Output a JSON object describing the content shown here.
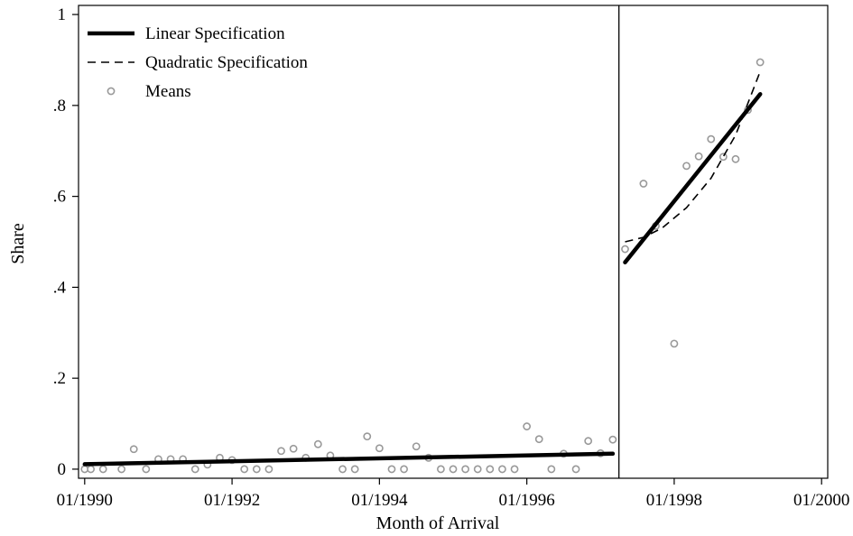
{
  "chart_data": {
    "type": "scatter",
    "title": "",
    "xlabel": "Month of Arrival",
    "ylabel": "Share",
    "x_unit": "month (YYYY-MM)",
    "xlim": [
      "1989-12",
      "2000-02"
    ],
    "ylim": [
      -0.02,
      1.02
    ],
    "x_ticks": [
      {
        "value": "1990-01",
        "label": "01/1990"
      },
      {
        "value": "1992-01",
        "label": "01/1992"
      },
      {
        "value": "1994-01",
        "label": "01/1994"
      },
      {
        "value": "1996-01",
        "label": "01/1996"
      },
      {
        "value": "1998-01",
        "label": "01/1998"
      },
      {
        "value": "2000-01",
        "label": "01/2000"
      }
    ],
    "y_ticks": [
      {
        "value": 0,
        "label": "0"
      },
      {
        "value": 0.2,
        "label": ".2"
      },
      {
        "value": 0.4,
        "label": ".4"
      },
      {
        "value": 0.6,
        "label": ".6"
      },
      {
        "value": 0.8,
        "label": ".8"
      },
      {
        "value": 1,
        "label": "1"
      }
    ],
    "grid": false,
    "legend_position": "top-left",
    "cutoff_line_x": "1997-04",
    "legend": [
      {
        "label": "Linear Specification",
        "style": "thick-solid"
      },
      {
        "label": "Quadratic Specification",
        "style": "dashed"
      },
      {
        "label": "Means",
        "style": "hollow-circle"
      }
    ],
    "series": [
      {
        "name": "Means",
        "kind": "points",
        "color": "#999999",
        "points": [
          [
            "1990-01",
            0.0
          ],
          [
            "1990-02",
            0.0
          ],
          [
            "1990-04",
            0.0
          ],
          [
            "1990-07",
            0.0
          ],
          [
            "1990-09",
            0.044
          ],
          [
            "1990-11",
            0.0
          ],
          [
            "1991-01",
            0.022
          ],
          [
            "1991-03",
            0.022
          ],
          [
            "1991-05",
            0.022
          ],
          [
            "1991-07",
            0.0
          ],
          [
            "1991-09",
            0.01
          ],
          [
            "1991-11",
            0.025
          ],
          [
            "1992-01",
            0.02
          ],
          [
            "1992-03",
            0.0
          ],
          [
            "1992-05",
            0.0
          ],
          [
            "1992-07",
            0.0
          ],
          [
            "1992-09",
            0.04
          ],
          [
            "1992-11",
            0.045
          ],
          [
            "1993-01",
            0.025
          ],
          [
            "1993-03",
            0.055
          ],
          [
            "1993-05",
            0.03
          ],
          [
            "1993-07",
            0.0
          ],
          [
            "1993-09",
            0.0
          ],
          [
            "1993-11",
            0.072
          ],
          [
            "1994-01",
            0.046
          ],
          [
            "1994-03",
            0.0
          ],
          [
            "1994-05",
            0.0
          ],
          [
            "1994-07",
            0.05
          ],
          [
            "1994-09",
            0.025
          ],
          [
            "1994-11",
            0.0
          ],
          [
            "1995-01",
            0.0
          ],
          [
            "1995-03",
            0.0
          ],
          [
            "1995-05",
            0.0
          ],
          [
            "1995-07",
            0.0
          ],
          [
            "1995-09",
            0.0
          ],
          [
            "1995-11",
            0.0
          ],
          [
            "1996-01",
            0.094
          ],
          [
            "1996-03",
            0.066
          ],
          [
            "1996-05",
            0.0
          ],
          [
            "1996-07",
            0.034
          ],
          [
            "1996-09",
            0.0
          ],
          [
            "1996-11",
            0.062
          ],
          [
            "1997-01",
            0.035
          ],
          [
            "1997-03",
            0.065
          ],
          [
            "1997-05",
            0.484
          ],
          [
            "1997-08",
            0.628
          ],
          [
            "1997-10",
            0.535
          ],
          [
            "1998-01",
            0.276
          ],
          [
            "1998-03",
            0.667
          ],
          [
            "1998-05",
            0.688
          ],
          [
            "1998-07",
            0.726
          ],
          [
            "1998-09",
            0.687
          ],
          [
            "1998-11",
            0.682
          ],
          [
            "1999-01",
            0.79
          ],
          [
            "1999-03",
            0.895
          ]
        ]
      },
      {
        "name": "Linear Specification",
        "kind": "line",
        "style": "thick-solid",
        "color": "#000000",
        "segments": [
          [
            [
              "1990-01",
              0.011
            ],
            [
              "1997-03",
              0.034
            ]
          ],
          [
            [
              "1997-05",
              0.455
            ],
            [
              "1999-03",
              0.825
            ]
          ]
        ]
      },
      {
        "name": "Quadratic Specification",
        "kind": "line",
        "style": "dashed",
        "color": "#000000",
        "segments": [
          [
            [
              "1990-01",
              0.011
            ],
            [
              "1997-03",
              0.034
            ]
          ],
          [
            [
              "1997-05",
              0.5
            ],
            [
              "1997-08",
              0.51
            ],
            [
              "1997-11",
              0.53
            ],
            [
              "1998-03",
              0.575
            ],
            [
              "1998-07",
              0.64
            ],
            [
              "1998-11",
              0.735
            ],
            [
              "1999-03",
              0.875
            ]
          ]
        ]
      }
    ]
  }
}
